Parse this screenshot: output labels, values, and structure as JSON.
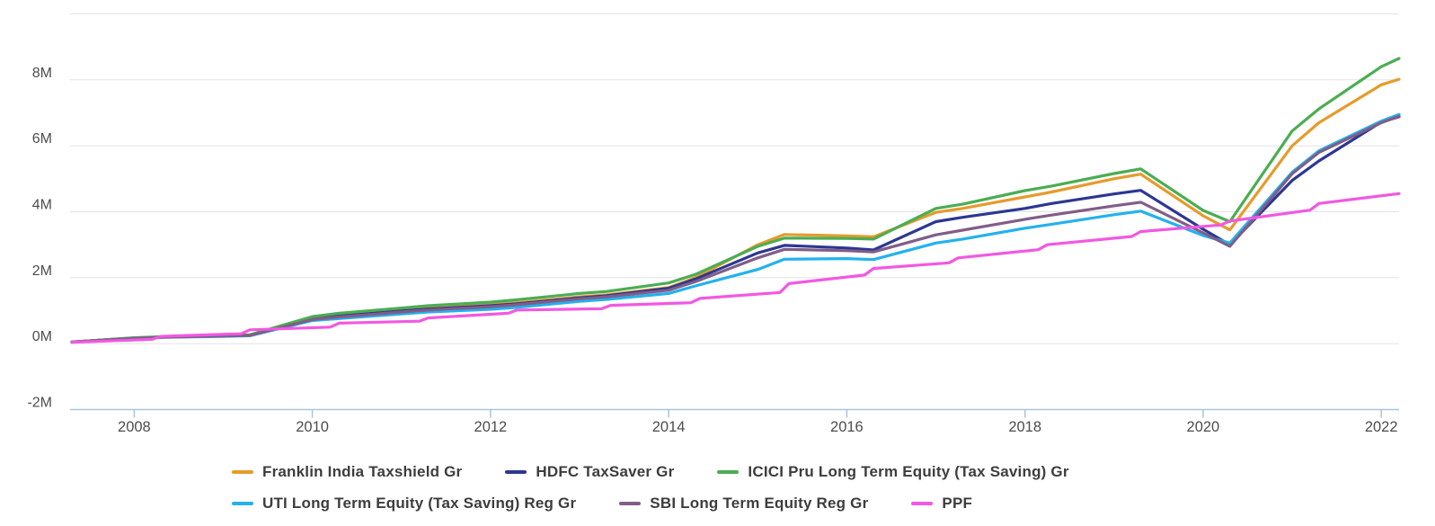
{
  "chart_data": {
    "type": "line",
    "x": [
      2007.3,
      2008.0,
      2008.3,
      2009.0,
      2009.3,
      2010.0,
      2010.3,
      2011.0,
      2011.3,
      2012.0,
      2012.3,
      2013.0,
      2013.3,
      2014.0,
      2014.3,
      2015.0,
      2015.3,
      2016.0,
      2016.3,
      2017.0,
      2017.3,
      2018.0,
      2018.3,
      2019.0,
      2019.3,
      2020.0,
      2020.3,
      2021.0,
      2021.3,
      2022.0,
      2022.2
    ],
    "series": [
      {
        "name": "Franklin India Taxshield Gr",
        "color": "#e59b2c",
        "values": [
          0.05,
          0.17,
          0.2,
          0.24,
          0.26,
          0.78,
          0.87,
          1.02,
          1.08,
          1.18,
          1.24,
          1.42,
          1.48,
          1.7,
          2.0,
          3.0,
          3.31,
          3.27,
          3.24,
          3.98,
          4.1,
          4.45,
          4.6,
          5.0,
          5.14,
          3.88,
          3.45,
          6.0,
          6.7,
          7.85,
          8.02
        ]
      },
      {
        "name": "HDFC TaxSaver Gr",
        "color": "#2c3792",
        "values": [
          0.05,
          0.17,
          0.2,
          0.23,
          0.25,
          0.75,
          0.84,
          0.99,
          1.05,
          1.15,
          1.21,
          1.39,
          1.45,
          1.68,
          1.96,
          2.75,
          2.98,
          2.9,
          2.84,
          3.7,
          3.83,
          4.1,
          4.25,
          4.54,
          4.65,
          3.47,
          3.0,
          4.95,
          5.54,
          6.72,
          6.88
        ]
      },
      {
        "name": "ICICI Pru Long Term Equity (Tax Saving) Gr",
        "color": "#4bad53",
        "values": [
          0.05,
          0.18,
          0.21,
          0.24,
          0.27,
          0.82,
          0.92,
          1.08,
          1.15,
          1.26,
          1.33,
          1.52,
          1.58,
          1.84,
          2.1,
          2.95,
          3.2,
          3.19,
          3.17,
          4.1,
          4.23,
          4.64,
          4.78,
          5.16,
          5.3,
          4.04,
          3.7,
          6.45,
          7.12,
          8.4,
          8.65
        ]
      },
      {
        "name": "UTI Long Term Equity (Tax Saving) Reg Gr",
        "color": "#23b2ed",
        "values": [
          0.04,
          0.16,
          0.19,
          0.22,
          0.24,
          0.7,
          0.76,
          0.9,
          0.96,
          1.04,
          1.1,
          1.28,
          1.34,
          1.52,
          1.75,
          2.25,
          2.56,
          2.58,
          2.55,
          3.05,
          3.17,
          3.5,
          3.62,
          3.91,
          4.02,
          3.28,
          3.05,
          5.2,
          5.85,
          6.75,
          6.95
        ]
      },
      {
        "name": "SBI Long Term Equity Reg Gr",
        "color": "#815d88",
        "values": [
          0.05,
          0.16,
          0.19,
          0.23,
          0.25,
          0.73,
          0.81,
          0.96,
          1.02,
          1.12,
          1.18,
          1.36,
          1.42,
          1.62,
          1.88,
          2.6,
          2.86,
          2.82,
          2.78,
          3.3,
          3.44,
          3.77,
          3.9,
          4.18,
          4.29,
          3.36,
          2.95,
          5.15,
          5.8,
          6.7,
          6.9
        ]
      },
      {
        "name": "PPF",
        "color": "#f258e2",
        "x": [
          2007.3,
          2008.2,
          2008.3,
          2009.2,
          2009.3,
          2010.2,
          2010.3,
          2011.2,
          2011.3,
          2012.2,
          2012.3,
          2013.25,
          2013.35,
          2014.25,
          2014.35,
          2015.25,
          2015.35,
          2016.2,
          2016.3,
          2017.15,
          2017.25,
          2018.15,
          2018.25,
          2019.2,
          2019.3,
          2020.2,
          2020.3,
          2021.2,
          2021.3,
          2022.2
        ],
        "values": [
          0.04,
          0.13,
          0.22,
          0.3,
          0.42,
          0.5,
          0.62,
          0.68,
          0.78,
          0.92,
          1.02,
          1.06,
          1.16,
          1.24,
          1.37,
          1.55,
          1.82,
          2.08,
          2.28,
          2.45,
          2.6,
          2.85,
          3.0,
          3.25,
          3.4,
          3.6,
          3.72,
          4.05,
          4.25,
          4.55
        ]
      }
    ],
    "xlim": [
      2007.28,
      2022.2
    ],
    "ylim": [
      -2,
      10
    ],
    "y_unit": "M",
    "y_gridlines": [
      10,
      8,
      6,
      4,
      2,
      0
    ],
    "y_ticks": [
      {
        "value": 8,
        "label": "8M"
      },
      {
        "value": 6,
        "label": "6M"
      },
      {
        "value": 4,
        "label": "4M"
      },
      {
        "value": 2,
        "label": "2M"
      },
      {
        "value": 0,
        "label": "0M"
      },
      {
        "value": -2,
        "label": "-2M"
      }
    ],
    "x_ticks": [
      {
        "value": 2008,
        "label": "2008"
      },
      {
        "value": 2010,
        "label": "2010"
      },
      {
        "value": 2012,
        "label": "2012"
      },
      {
        "value": 2014,
        "label": "2014"
      },
      {
        "value": 2016,
        "label": "2016"
      },
      {
        "value": 2018,
        "label": "2018"
      },
      {
        "value": 2020,
        "label": "2020"
      },
      {
        "value": 2022,
        "label": "2022"
      }
    ],
    "grid": true,
    "legend_position": "bottom"
  },
  "colors": {
    "background": "#ffffff",
    "grid": "#e3e3e3",
    "axis": "#a9c4da",
    "tick_text": "#4d4d4d",
    "legend_text": "#3d3d3d"
  }
}
